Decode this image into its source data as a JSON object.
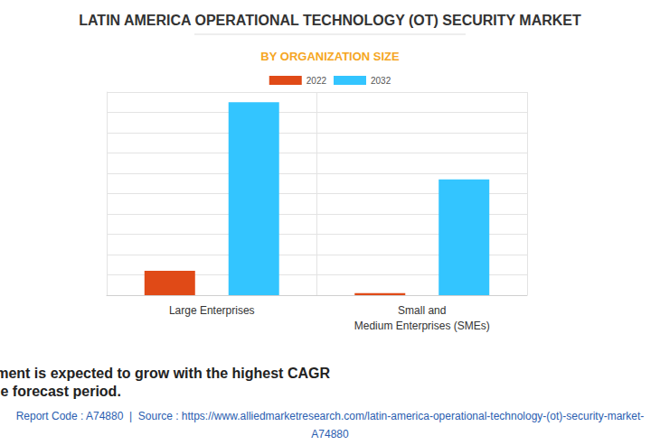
{
  "chart_data": {
    "type": "bar",
    "title": "LATIN AMERICA OPERATIONAL TECHNOLOGY (OT) SECURITY MARKET",
    "subtitle": "BY ORGANIZATION SIZE",
    "categories": [
      "Large Enterprises",
      "Small and\nMedium Enterprises (SMEs)"
    ],
    "series": [
      {
        "name": "2022",
        "color": "#e04a17",
        "values": [
          12,
          1
        ]
      },
      {
        "name": "2032",
        "color": "#33c5ff",
        "values": [
          95,
          57
        ]
      }
    ],
    "ylim": [
      0,
      100
    ],
    "yticks": [
      0,
      10,
      20,
      30,
      40,
      50,
      60,
      70,
      80,
      90,
      100
    ],
    "grid": true,
    "legend": "top",
    "tick_labels": "x",
    "caption": [
      "The small and medium enterprises segment is expected to grow with the highest CAGR",
      "during the forecast period."
    ],
    "source": [
      "Report Code : A74880  |  Source : https://www.alliedmarketresearch.com/latin-america-operational-technology-(ot)-security-market-",
      "A74880"
    ]
  }
}
